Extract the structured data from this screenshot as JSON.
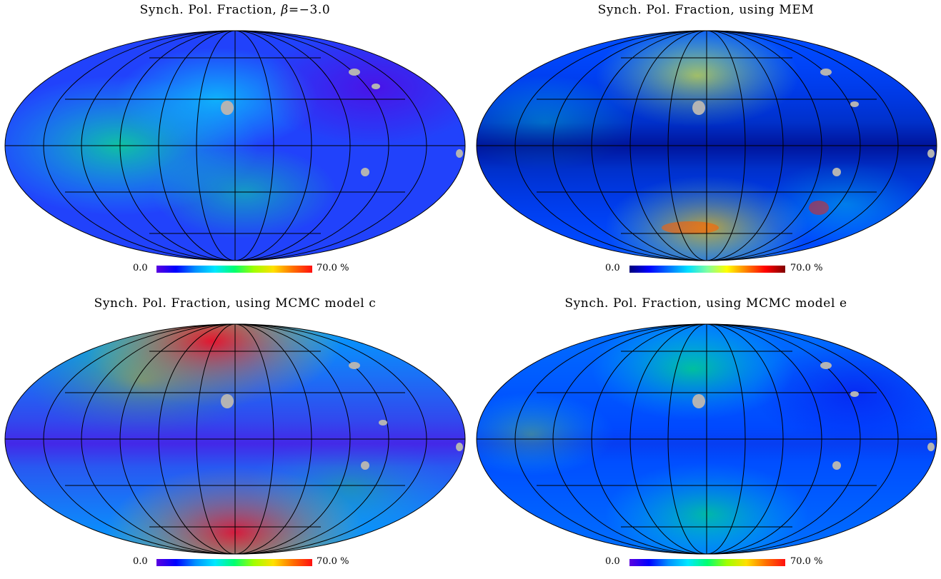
{
  "panels": [
    {
      "title_prefix": "Synch. Pol. Fraction, ",
      "title_beta_symbol": "β",
      "title_beta_value": "=−3.0",
      "colorbar": {
        "min": "0.0",
        "max": "70.0 %",
        "colors": [
          "#5a00e0",
          "#0000ff",
          "#0090ff",
          "#00e8ff",
          "#00ff70",
          "#a0ff00",
          "#ffe000",
          "#ff7000",
          "#ff1010"
        ]
      }
    },
    {
      "title": "Synch. Pol. Fraction, using MEM",
      "colorbar": {
        "min": "0.0",
        "max": "70.0 %",
        "colors": [
          "#00007a",
          "#0000ff",
          "#0070ff",
          "#00e0ff",
          "#80ffa0",
          "#ffff00",
          "#ff8000",
          "#ff0000",
          "#800000"
        ]
      }
    },
    {
      "title": "Synch. Pol. Fraction, using MCMC model c",
      "colorbar": {
        "min": "0.0",
        "max": "70.0 %",
        "colors": [
          "#5a00e0",
          "#0000ff",
          "#0090ff",
          "#00e8ff",
          "#00ff70",
          "#a0ff00",
          "#ffe000",
          "#ff7000",
          "#ff1010"
        ]
      }
    },
    {
      "title": "Synch. Pol. Fraction, using MCMC model e",
      "colorbar": {
        "min": "0.0",
        "max": "70.0 %",
        "colors": [
          "#5a00e0",
          "#0000ff",
          "#0090ff",
          "#00e8ff",
          "#00ff70",
          "#a0ff00",
          "#ffe000",
          "#ff7000",
          "#ff1010"
        ]
      }
    }
  ],
  "masked_pixel_color": "#b4b4b4"
}
